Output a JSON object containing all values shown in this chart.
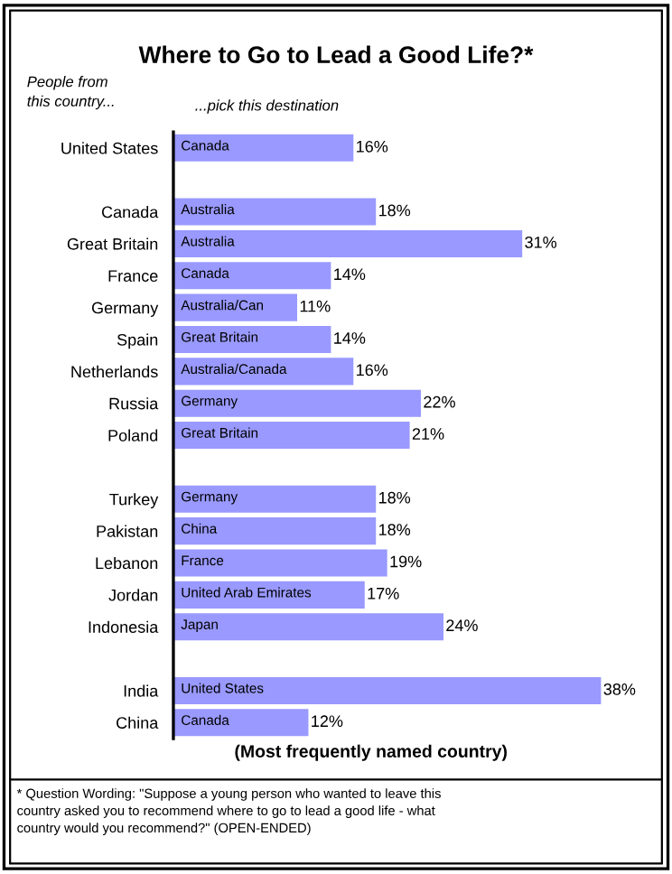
{
  "chart_data": {
    "type": "bar",
    "orientation": "horizontal",
    "title": "Where to Go to Lead a Good Life?*",
    "xlabel": "(Most frequently named country)",
    "categories": [
      "United States",
      null,
      "Canada",
      "Great Britain",
      "France",
      "Germany",
      "Spain",
      "Netherlands",
      "Russia",
      "Poland",
      null,
      "Turkey",
      "Pakistan",
      "Lebanon",
      "Jordan",
      "Indonesia",
      null,
      "India",
      "China"
    ],
    "values": [
      16,
      null,
      18,
      31,
      14,
      11,
      14,
      16,
      22,
      21,
      null,
      18,
      18,
      19,
      17,
      24,
      null,
      38,
      12
    ],
    "value_labels": [
      "16%",
      null,
      "18%",
      "31%",
      "14%",
      "11%",
      "14%",
      "16%",
      "22%",
      "21%",
      null,
      "18%",
      "18%",
      "19%",
      "17%",
      "24%",
      null,
      "38%",
      "12%"
    ],
    "color": "#9999ff",
    "grid": false,
    "annotations": [
      "People from\nthis country...",
      "...pick this destination",
      "* Question Wording: \"Suppose a young person who wanted to leave this\ncountry asked you to recommend where to go to lead a good life - what\ncountry would you recommend?\" (OPEN-ENDED)",
      "Canada",
      "Australia",
      "Australia",
      "Canada",
      "Australia/Can",
      "Great Britain",
      "Australia/Canada",
      "Germany",
      "Great Britain",
      "Germany",
      "China",
      "France",
      "United Arab Emirates",
      "Japan",
      "United States",
      "Canada"
    ]
  }
}
